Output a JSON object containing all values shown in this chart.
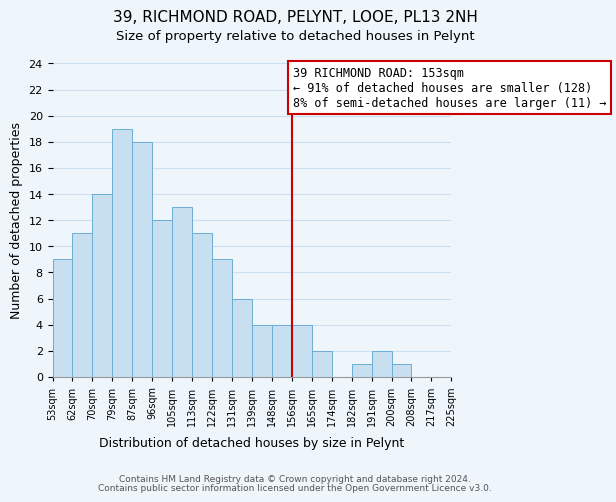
{
  "title": "39, RICHMOND ROAD, PELYNT, LOOE, PL13 2NH",
  "subtitle": "Size of property relative to detached houses in Pelynt",
  "xlabel": "Distribution of detached houses by size in Pelynt",
  "ylabel": "Number of detached properties",
  "bin_labels": [
    "53sqm",
    "62sqm",
    "70sqm",
    "79sqm",
    "87sqm",
    "96sqm",
    "105sqm",
    "113sqm",
    "122sqm",
    "131sqm",
    "139sqm",
    "148sqm",
    "156sqm",
    "165sqm",
    "174sqm",
    "182sqm",
    "191sqm",
    "200sqm",
    "208sqm",
    "217sqm",
    "225sqm"
  ],
  "bar_heights": [
    9,
    11,
    14,
    19,
    18,
    12,
    13,
    11,
    9,
    6,
    4,
    4,
    4,
    2,
    0,
    1,
    2,
    1,
    0,
    0
  ],
  "bar_color": "#c8dff0",
  "bar_edge_color": "#6baed6",
  "annotation_box_text_line1": "39 RICHMOND ROAD: 153sqm",
  "annotation_box_text_line2": "← 91% of detached houses are smaller (128)",
  "annotation_box_text_line3": "8% of semi-detached houses are larger (11) →",
  "annotation_box_color": "#ffffff",
  "annotation_box_edge_color": "#cc0000",
  "vline_color": "#cc0000",
  "vline_x_index": 12,
  "ylim": [
    0,
    24
  ],
  "yticks": [
    0,
    2,
    4,
    6,
    8,
    10,
    12,
    14,
    16,
    18,
    20,
    22,
    24
  ],
  "footer1": "Contains HM Land Registry data © Crown copyright and database right 2024.",
  "footer2": "Contains public sector information licensed under the Open Government Licence v3.0.",
  "title_fontsize": 11,
  "subtitle_fontsize": 9.5,
  "xlabel_fontsize": 9,
  "ylabel_fontsize": 9,
  "annotation_fontsize": 8.5,
  "footer_fontsize": 6.5,
  "tick_fontsize": 7,
  "ytick_fontsize": 8,
  "grid_color": "#cce0f0",
  "background_color": "#eef5fb"
}
